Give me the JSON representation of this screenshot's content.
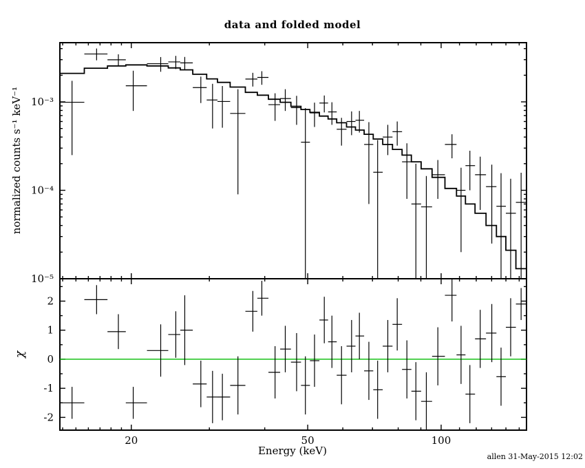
{
  "chart_data": [
    {
      "type": "scatter",
      "title": "data and folded model",
      "xlabel": "Energy (keV)",
      "ylabel": "normalized counts s⁻¹ keV⁻¹",
      "xscale": "log",
      "yscale": "log",
      "xlim": [
        13.8,
        155.8
      ],
      "ylim": [
        1e-05,
        0.00467
      ],
      "x_major_ticks": [
        20,
        50,
        100
      ],
      "x_major_labels": [
        "20",
        "50",
        "100"
      ],
      "x_minor_ticks": [
        14,
        15,
        16,
        17,
        18,
        19,
        30,
        40,
        60,
        70,
        80,
        90,
        110,
        120,
        130,
        140,
        150
      ],
      "y_major_ticks": [
        0.001,
        0.0001,
        1e-05
      ],
      "y_major_labels": [
        "10⁻³",
        "10⁻⁴",
        "10⁻⁵"
      ],
      "x": [
        14.7,
        16.7,
        18.7,
        20.2,
        23.3,
        25.2,
        26.4,
        28.7,
        30.5,
        32.1,
        34.8,
        37.6,
        39.4,
        42.2,
        44.5,
        47.2,
        49.4,
        51.8,
        54.5,
        56.7,
        59.6,
        62.8,
        65.4,
        68.7,
        71.9,
        75.8,
        79.6,
        83.7,
        87.7,
        92.6,
        98.3,
        105.8,
        110.9,
        116.1,
        122.5,
        130.1,
        136.5,
        143.5,
        151.5
      ],
      "y": [
        0.00099,
        0.00348,
        0.00299,
        0.00152,
        0.0027,
        0.00283,
        0.00276,
        0.00145,
        0.00105,
        0.00101,
        0.00074,
        0.00181,
        0.00189,
        0.00093,
        0.00109,
        0.00086,
        0.00035,
        0.00075,
        0.00097,
        0.00077,
        0.00049,
        0.0006,
        0.00062,
        0.00033,
        0.00016,
        0.0004,
        0.00046,
        0.00021,
        7e-05,
        6.5e-05,
        0.00015,
        0.00033,
        0.0001,
        0.00019,
        0.00015,
        0.00011,
        6.6e-05,
        5.5e-05,
        7.3e-05
      ],
      "yerr": [
        0.00074,
        0.00053,
        0.00046,
        0.00073,
        0.00051,
        0.00048,
        0.00046,
        0.00048,
        0.00055,
        0.0005,
        0.00065,
        0.00032,
        0.00033,
        0.00032,
        0.0003,
        0.00031,
        0.0005,
        0.00023,
        0.00021,
        0.00022,
        0.00017,
        0.00018,
        0.00017,
        0.00026,
        0.00021,
        0.00015,
        0.00014,
        0.00013,
        0.00013,
        8e-05,
        7e-05,
        0.0001,
        8e-05,
        9e-05,
        9e-05,
        8.5e-05,
        9e-05,
        8e-05,
        8.5e-05
      ],
      "model": [
        0.0021,
        0.0024,
        0.00255,
        0.00262,
        0.00255,
        0.00242,
        0.0023,
        0.00205,
        0.00182,
        0.00166,
        0.00147,
        0.00128,
        0.00119,
        0.00107,
        0.00099,
        0.00089,
        0.00082,
        0.00076,
        0.00069,
        0.00064,
        0.00058,
        0.00052,
        0.00048,
        0.00043,
        0.00038,
        0.00033,
        0.00029,
        0.00025,
        0.00021,
        0.000175,
        0.00014,
        0.000105,
        8.6e-05,
        7e-05,
        5.5e-05,
        4e-05,
        3e-05,
        2.1e-05,
        1.3e-05
      ]
    },
    {
      "type": "scatter",
      "ylabel": "χ",
      "yscale": "linear",
      "ylim": [
        -2.44,
        2.77
      ],
      "y_major_ticks": [
        2,
        1,
        0,
        -1,
        -2
      ],
      "y_major_labels": [
        "2",
        "1",
        "0",
        "-1",
        "-2"
      ],
      "y": [
        -1.5,
        2.05,
        0.95,
        -1.5,
        0.3,
        0.85,
        1.0,
        -0.85,
        -1.3,
        -1.3,
        -0.9,
        1.65,
        2.1,
        -0.45,
        0.35,
        -0.1,
        -0.9,
        -0.05,
        1.35,
        0.6,
        -0.55,
        0.45,
        0.8,
        -0.4,
        -1.05,
        0.45,
        1.2,
        -0.35,
        -1.1,
        -1.45,
        0.1,
        2.2,
        0.15,
        -1.2,
        0.7,
        0.9,
        -0.6,
        1.1,
        1.9
      ],
      "yerr": [
        0.55,
        0.5,
        0.6,
        0.55,
        0.9,
        0.8,
        1.2,
        0.8,
        0.9,
        0.8,
        1.0,
        0.7,
        0.6,
        0.9,
        0.8,
        1.0,
        1.0,
        0.9,
        0.8,
        0.9,
        1.0,
        0.9,
        0.8,
        1.0,
        1.0,
        0.9,
        0.9,
        1.0,
        1.0,
        1.0,
        1.0,
        0.9,
        1.0,
        1.0,
        1.0,
        1.0,
        1.0,
        1.0,
        0.55
      ],
      "zero_line": 0,
      "zero_line_color": "#00bb00"
    }
  ],
  "timestamp": "allen 31-May-2015 12:02",
  "colors": {
    "foreground": "#000000",
    "background": "#ffffff",
    "zero_line": "#00bb00"
  }
}
